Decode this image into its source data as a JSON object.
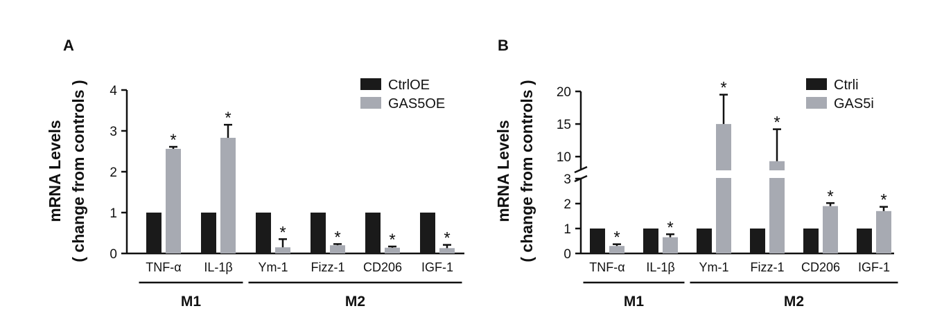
{
  "chart_data": [
    {
      "type": "bar",
      "panel": "A",
      "ylabel_line1": "mRNA Levels",
      "ylabel_line2": "( change from controls )",
      "ylim": [
        0,
        4
      ],
      "yticks": [
        "0",
        "1",
        "2",
        "3",
        "4"
      ],
      "categories": [
        "TNF-α",
        "IL-1β",
        "Ym-1",
        "Fizz-1",
        "CD206",
        "IGF-1"
      ],
      "groups": [
        {
          "label": "M1",
          "categories": [
            "TNF-α",
            "IL-1β"
          ]
        },
        {
          "label": "M2",
          "categories": [
            "Ym-1",
            "Fizz-1",
            "CD206",
            "IGF-1"
          ]
        }
      ],
      "series": [
        {
          "name": "CtrlOE",
          "color": "#1a1a1a",
          "values": [
            1,
            1,
            1,
            1,
            1,
            1
          ],
          "errors": [
            0,
            0,
            0,
            0,
            0,
            0
          ]
        },
        {
          "name": "GAS5OE",
          "color": "#a7aab2",
          "values": [
            2.56,
            2.83,
            0.15,
            0.2,
            0.14,
            0.13
          ],
          "errors": [
            0.05,
            0.32,
            0.2,
            0.03,
            0.03,
            0.08
          ]
        }
      ],
      "annotations": [
        "*",
        "*",
        "*",
        "*",
        "*",
        "*"
      ],
      "legend": "top-right",
      "grid": false
    },
    {
      "type": "bar",
      "panel": "B",
      "ylabel_line1": "mRNA Levels",
      "ylabel_line2": "( change from controls )",
      "axis_break": [
        3,
        8
      ],
      "yticks_lower": [
        "0",
        "1",
        "2",
        "3"
      ],
      "yticks_upper": [
        "10",
        "15",
        "20"
      ],
      "ylim_lower": [
        0,
        3
      ],
      "ylim_upper": [
        8,
        20
      ],
      "categories": [
        "TNF-α",
        "IL-1β",
        "Ym-1",
        "Fizz-1",
        "CD206",
        "IGF-1"
      ],
      "groups": [
        {
          "label": "M1",
          "categories": [
            "TNF-α",
            "IL-1β"
          ]
        },
        {
          "label": "M2",
          "categories": [
            "Ym-1",
            "Fizz-1",
            "CD206",
            "IGF-1"
          ]
        }
      ],
      "series": [
        {
          "name": "Ctrli",
          "color": "#1a1a1a",
          "values": [
            1,
            1,
            1,
            1,
            1,
            1
          ],
          "errors": [
            0,
            0,
            0,
            0,
            0,
            0
          ]
        },
        {
          "name": "GAS5i",
          "color": "#a7aab2",
          "values": [
            0.3,
            0.65,
            15.0,
            9.3,
            1.9,
            1.7
          ],
          "errors": [
            0.07,
            0.12,
            4.5,
            4.9,
            0.12,
            0.17
          ]
        }
      ],
      "annotations": [
        "*",
        "*",
        "*",
        "*",
        "*",
        "*"
      ],
      "legend": "top-right",
      "grid": false
    }
  ]
}
